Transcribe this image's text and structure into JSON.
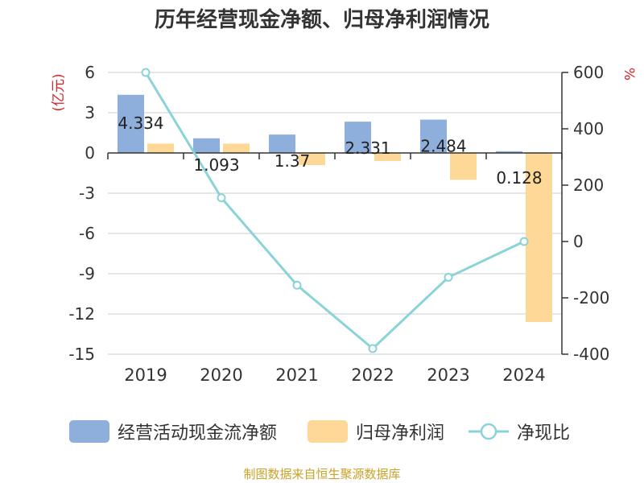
{
  "chart_data": {
    "type": "bar",
    "title": "历年经营现金净额、归母净利润情况",
    "categories": [
      "2019",
      "2020",
      "2021",
      "2022",
      "2023",
      "2024"
    ],
    "y_left": {
      "label": "(亿元)",
      "ticks": [
        "6",
        "3",
        "0",
        "-3",
        "-6",
        "-9",
        "-12",
        "-15"
      ],
      "range": [
        -15,
        6
      ]
    },
    "y_right": {
      "label": "%",
      "ticks": [
        "600",
        "400",
        "200",
        "0",
        "-200",
        "-400"
      ],
      "range": [
        -400,
        600
      ]
    },
    "series": [
      {
        "name": "经营活动现金流净额",
        "type": "bar",
        "axis": "left",
        "color": "#8eaedc",
        "values": [
          4.334,
          1.093,
          1.37,
          2.331,
          2.484,
          0.128
        ],
        "labels": [
          "4.334",
          "1.093",
          "1.37",
          "2.331",
          "2.484",
          "0.128"
        ]
      },
      {
        "name": "归母净利润",
        "type": "bar",
        "axis": "left",
        "color": "#fdd897",
        "values": [
          0.7,
          0.7,
          -0.9,
          -0.6,
          -2.0,
          -12.6
        ]
      },
      {
        "name": "净现比",
        "type": "line",
        "axis": "right",
        "color": "#8ad3d8",
        "values": [
          600,
          155,
          -155,
          -380,
          -127,
          0
        ]
      }
    ],
    "grid": true,
    "legend_position": "bottom",
    "source": "制图数据来自恒生聚源数据库"
  }
}
